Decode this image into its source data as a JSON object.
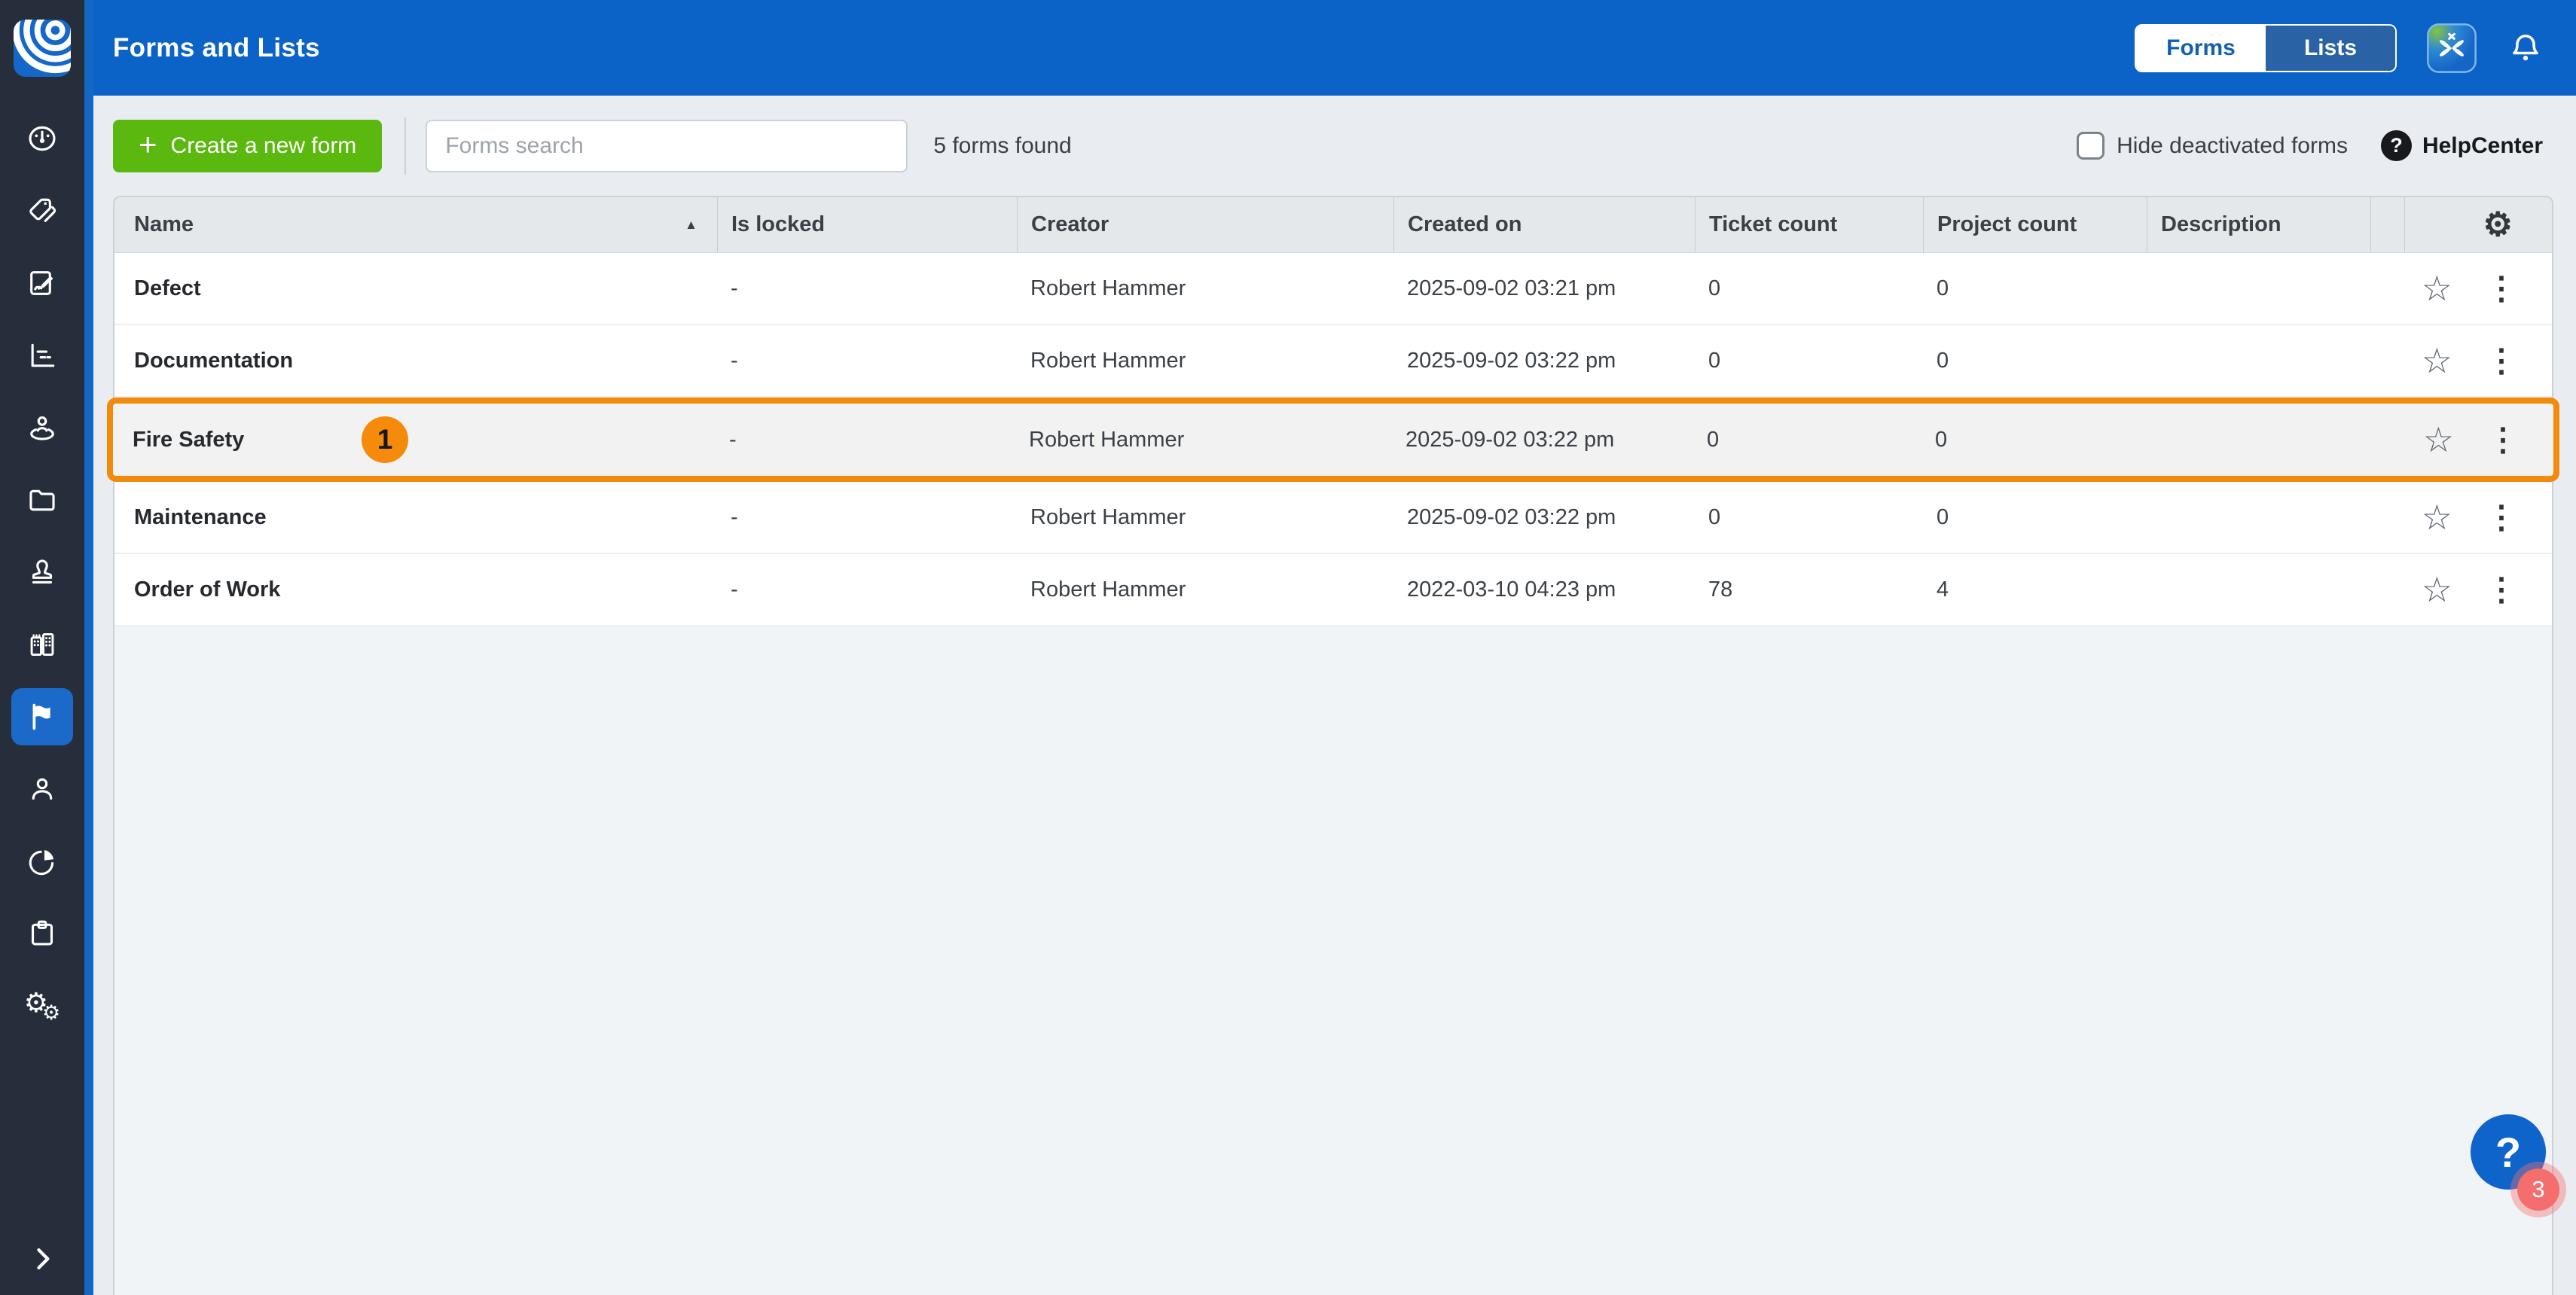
{
  "header": {
    "title": "Forms and Lists",
    "toggle": {
      "options": [
        "Forms",
        "Lists"
      ],
      "active": "Forms"
    },
    "icons": [
      "app-switcher-icon",
      "bell-icon"
    ]
  },
  "toolbar": {
    "create_button": "Create a new form",
    "search_placeholder": "Forms search",
    "search_value": "",
    "results_count": "5 forms found",
    "hide_checkbox_label": "Hide deactivated forms",
    "hide_checkbox_checked": false,
    "help_label": "HelpCenter"
  },
  "table": {
    "columns": [
      {
        "key": "name",
        "label": "Name",
        "sorted": "asc"
      },
      {
        "key": "is_locked",
        "label": "Is locked"
      },
      {
        "key": "creator",
        "label": "Creator"
      },
      {
        "key": "created_on",
        "label": "Created on"
      },
      {
        "key": "ticket_count",
        "label": "Ticket count"
      },
      {
        "key": "project_count",
        "label": "Project count"
      },
      {
        "key": "description",
        "label": "Description"
      }
    ],
    "settings_icon": "gear-icon",
    "row_icons": [
      "favorite-star-icon",
      "row-menu-kebab-icon"
    ],
    "rows": [
      {
        "name": "Defect",
        "is_locked": "-",
        "creator": "Robert Hammer",
        "created_on": "2025-09-02 03:21 pm",
        "ticket_count": "0",
        "project_count": "0",
        "description": ""
      },
      {
        "name": "Documentation",
        "is_locked": "-",
        "creator": "Robert Hammer",
        "created_on": "2025-09-02 03:22 pm",
        "ticket_count": "0",
        "project_count": "0",
        "description": ""
      },
      {
        "name": "Fire Safety",
        "is_locked": "-",
        "creator": "Robert Hammer",
        "created_on": "2025-09-02 03:22 pm",
        "ticket_count": "0",
        "project_count": "0",
        "description": "",
        "highlighted": true,
        "annotation_badge": "1"
      },
      {
        "name": "Maintenance",
        "is_locked": "-",
        "creator": "Robert Hammer",
        "created_on": "2025-09-02 03:22 pm",
        "ticket_count": "0",
        "project_count": "0",
        "description": ""
      },
      {
        "name": "Order of Work",
        "is_locked": "-",
        "creator": "Robert Hammer",
        "created_on": "2022-03-10 04:23 pm",
        "ticket_count": "78",
        "project_count": "4",
        "description": ""
      }
    ]
  },
  "sidebar": {
    "items": [
      {
        "id": "dashboard",
        "icon": "dashboard-icon",
        "active": false
      },
      {
        "id": "tags",
        "icon": "tags-icon",
        "active": false
      },
      {
        "id": "forms-sign",
        "icon": "form-signature-icon",
        "active": false
      },
      {
        "id": "reports",
        "icon": "report-chart-icon",
        "active": false
      },
      {
        "id": "locations",
        "icon": "person-location-icon",
        "active": false
      },
      {
        "id": "folders",
        "icon": "folder-icon",
        "active": false
      },
      {
        "id": "approvals",
        "icon": "stamp-icon",
        "active": false
      },
      {
        "id": "company",
        "icon": "company-buildings-icon",
        "active": false
      },
      {
        "id": "flags",
        "icon": "flag-icon",
        "active": true
      },
      {
        "id": "people",
        "icon": "person-icon",
        "active": false
      },
      {
        "id": "analytics",
        "icon": "pie-chart-icon",
        "active": false
      },
      {
        "id": "tasks",
        "icon": "clipboard-icon",
        "active": false
      },
      {
        "id": "settings",
        "icon": "settings-gears-icon",
        "active": false
      }
    ],
    "expand_icon": "chevron-right-icon"
  },
  "help_fab": {
    "question_mark": "?",
    "badge_count": "3"
  },
  "colors": {
    "topbar_blue": "#0C63C7",
    "sidebar_dark": "#262E3C",
    "sidebar_strip_blue": "#1567C6",
    "active_item_blue": "#1B6AC9",
    "create_green": "#5BB80F",
    "highlight_orange": "#F28A0B",
    "fab_blue": "#0F64CC",
    "fab_badge_red": "#F56E6E",
    "content_bg": "#E9EDF1",
    "table_header_bg": "#E4E8EB"
  }
}
